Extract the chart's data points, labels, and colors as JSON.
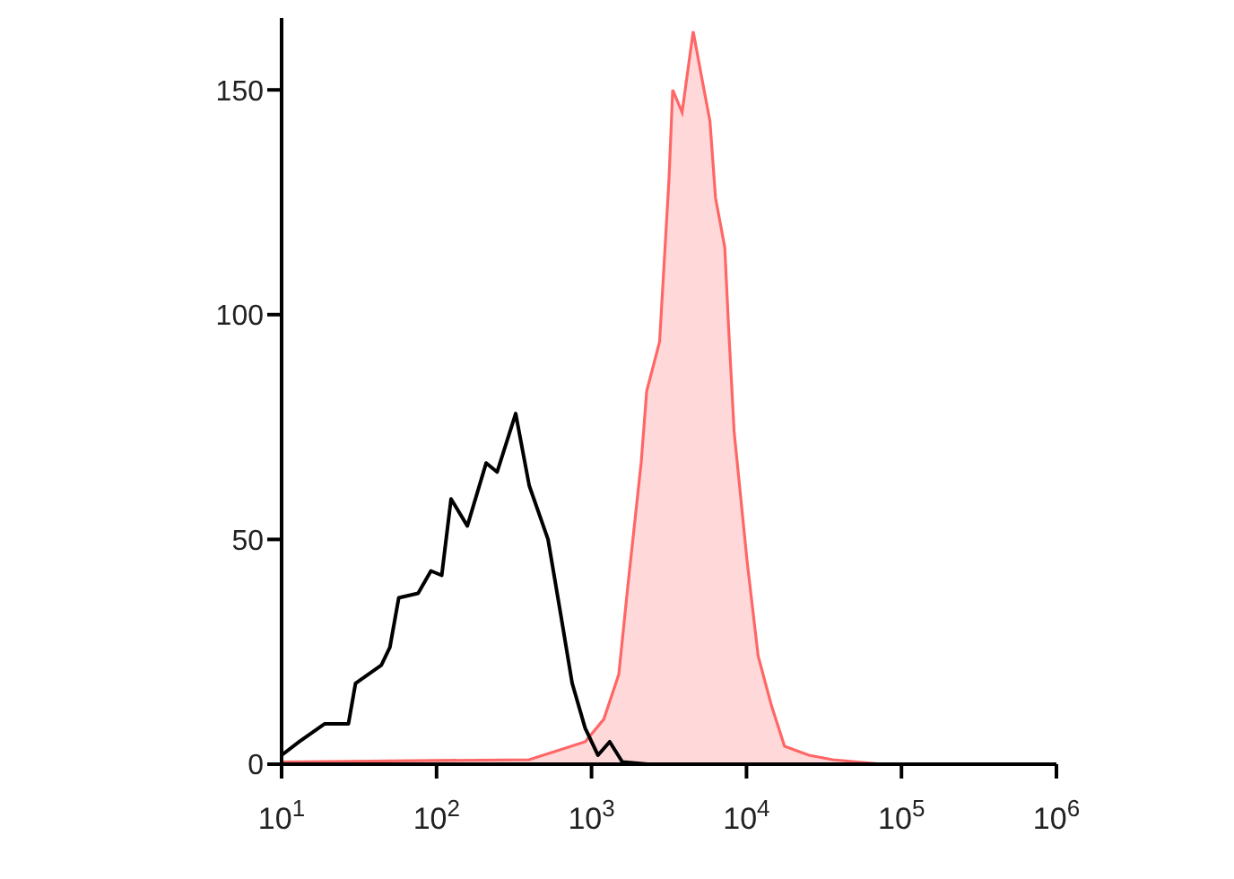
{
  "chart_data": {
    "type": "line",
    "log": "x",
    "xlim": [
      10,
      1000000
    ],
    "ylim": [
      0,
      166
    ],
    "xticks": [
      {
        "value": 10,
        "label": "10$^{1}$"
      },
      {
        "value": 100,
        "label": "10$^{2}$"
      },
      {
        "value": 1000,
        "label": "10$^{3}$"
      },
      {
        "value": 10000,
        "label": "10$^{4}$"
      },
      {
        "value": 100000,
        "label": "10$^{5}$"
      },
      {
        "value": 1000000,
        "label": "10$^{6}$"
      }
    ],
    "yticks": [
      0,
      50,
      100,
      150
    ],
    "marker": "none",
    "series": [
      {
        "type": "area",
        "color": "#ff6666",
        "x": [
          10,
          396,
          600,
          910,
          1200,
          1500,
          1720,
          2090,
          2270,
          2750,
          3160,
          3340,
          3840,
          4530,
          5060,
          5810,
          6310,
          7240,
          7670,
          8320,
          10100,
          11900,
          14500,
          17600,
          25300,
          36000,
          76000
        ],
        "values": [
          0.5,
          1,
          3,
          5,
          10,
          20,
          40,
          67,
          83,
          94,
          130,
          150,
          145,
          163,
          154,
          143,
          126,
          115,
          97,
          74,
          45,
          24,
          13,
          4,
          2,
          1,
          0
        ]
      },
      {
        "color": "#000000",
        "x": [
          10,
          13,
          19,
          27,
          30,
          44,
          50,
          57,
          76,
          92,
          108,
          124,
          158,
          209,
          246,
          324,
          396,
          524,
          635,
          750,
          910,
          1100,
          1310,
          1580,
          2300
        ],
        "values": [
          2,
          5,
          9,
          9,
          18,
          22,
          26,
          37,
          38,
          43,
          42,
          59,
          53,
          67,
          65,
          78,
          62,
          50,
          33,
          18,
          8,
          2,
          5,
          0.5,
          0
        ]
      }
    ]
  }
}
